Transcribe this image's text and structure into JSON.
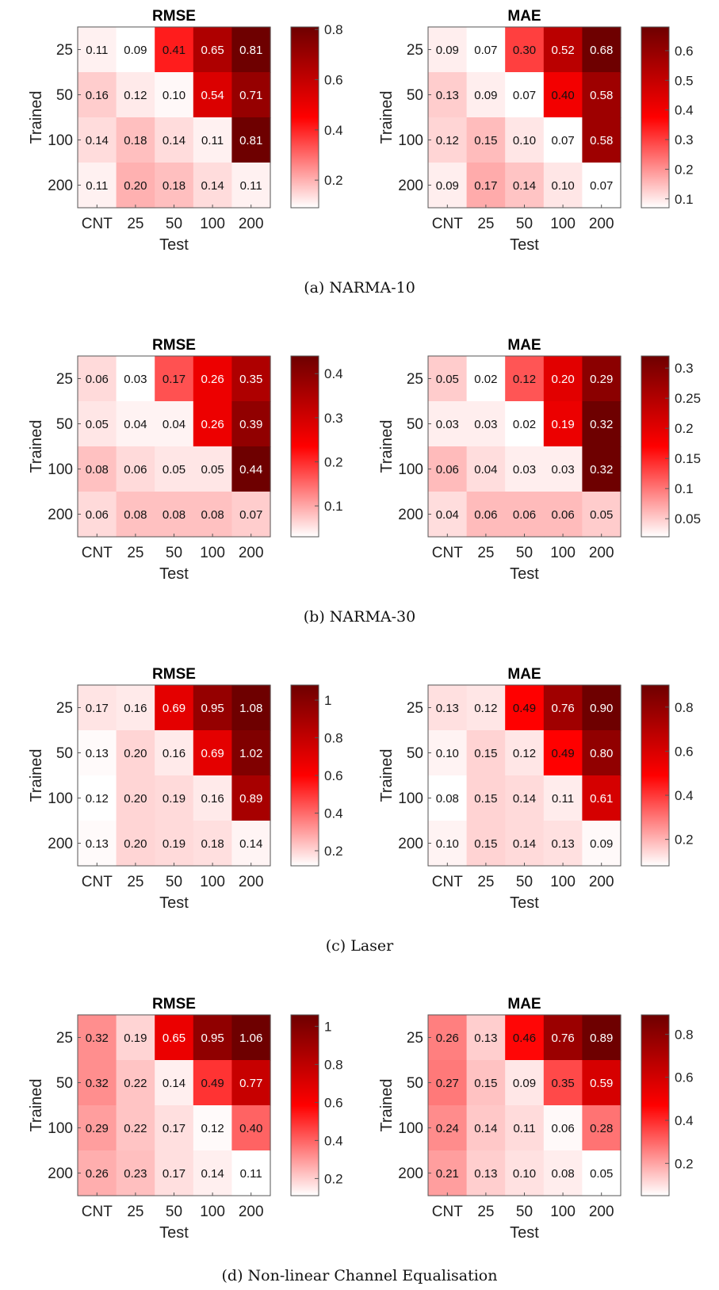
{
  "figure": {
    "panels": [
      {
        "caption": "(a) NARMA-10",
        "charts": [
          {
            "title": "RMSE",
            "cbar_ticks": [
              "0.2",
              "0.4",
              "0.6",
              "0.8"
            ]
          },
          {
            "title": "MAE",
            "cbar_ticks": [
              "0.1",
              "0.2",
              "0.3",
              "0.4",
              "0.5",
              "0.6"
            ]
          }
        ]
      },
      {
        "caption": "(b) NARMA-30",
        "charts": [
          {
            "title": "RMSE",
            "cbar_ticks": [
              "0.1",
              "0.2",
              "0.3",
              "0.4"
            ]
          },
          {
            "title": "MAE",
            "cbar_ticks": [
              "0.05",
              "0.1",
              "0.15",
              "0.2",
              "0.25",
              "0.3"
            ]
          }
        ]
      },
      {
        "caption": "(c) Laser",
        "charts": [
          {
            "title": "RMSE",
            "cbar_ticks": [
              "0.2",
              "0.4",
              "0.6",
              "0.8",
              "1"
            ]
          },
          {
            "title": "MAE",
            "cbar_ticks": [
              "0.2",
              "0.4",
              "0.6",
              "0.8"
            ]
          }
        ]
      },
      {
        "caption": "(d) Non-linear Channel Equalisation",
        "charts": [
          {
            "title": "RMSE",
            "cbar_ticks": [
              "0.2",
              "0.4",
              "0.6",
              "0.8",
              "1"
            ]
          },
          {
            "title": "MAE",
            "cbar_ticks": [
              "0.2",
              "0.4",
              "0.6",
              "0.8"
            ]
          }
        ]
      }
    ]
  },
  "colormap": {
    "low": "#ffffff",
    "mid": "#ff0000",
    "high": "#6e0000"
  },
  "chart_data": [
    {
      "type": "heatmap",
      "panel": "(a) NARMA-10",
      "title": "RMSE",
      "xlabel": "Test",
      "ylabel": "Trained",
      "x_categories": [
        "CNT",
        "25",
        "50",
        "100",
        "200"
      ],
      "y_categories": [
        "25",
        "50",
        "100",
        "200"
      ],
      "values": [
        [
          "0.11",
          "0.09",
          "0.41",
          "0.65",
          "0.81"
        ],
        [
          "0.16",
          "0.12",
          "0.10",
          "0.54",
          "0.71"
        ],
        [
          "0.14",
          "0.18",
          "0.14",
          "0.11",
          "0.81"
        ],
        [
          "0.11",
          "0.20",
          "0.18",
          "0.14",
          "0.11"
        ]
      ],
      "colorbar": {
        "range": [
          0.09,
          0.81
        ],
        "ticks": [
          0.2,
          0.4,
          0.6,
          0.8
        ]
      }
    },
    {
      "type": "heatmap",
      "panel": "(a) NARMA-10",
      "title": "MAE",
      "xlabel": "Test",
      "ylabel": "Trained",
      "x_categories": [
        "CNT",
        "25",
        "50",
        "100",
        "200"
      ],
      "y_categories": [
        "25",
        "50",
        "100",
        "200"
      ],
      "values": [
        [
          "0.09",
          "0.07",
          "0.30",
          "0.52",
          "0.68"
        ],
        [
          "0.13",
          "0.09",
          "0.07",
          "0.40",
          "0.58"
        ],
        [
          "0.12",
          "0.15",
          "0.10",
          "0.07",
          "0.58"
        ],
        [
          "0.09",
          "0.17",
          "0.14",
          "0.10",
          "0.07"
        ]
      ],
      "colorbar": {
        "range": [
          0.07,
          0.68
        ],
        "ticks": [
          0.1,
          0.2,
          0.3,
          0.4,
          0.5,
          0.6
        ]
      }
    },
    {
      "type": "heatmap",
      "panel": "(b) NARMA-30",
      "title": "RMSE",
      "xlabel": "Test",
      "ylabel": "Trained",
      "x_categories": [
        "CNT",
        "25",
        "50",
        "100",
        "200"
      ],
      "y_categories": [
        "25",
        "50",
        "100",
        "200"
      ],
      "values": [
        [
          "0.06",
          "0.03",
          "0.17",
          "0.26",
          "0.35"
        ],
        [
          "0.05",
          "0.04",
          "0.04",
          "0.26",
          "0.39"
        ],
        [
          "0.08",
          "0.06",
          "0.05",
          "0.05",
          "0.44"
        ],
        [
          "0.06",
          "0.08",
          "0.08",
          "0.08",
          "0.07"
        ]
      ],
      "colorbar": {
        "range": [
          0.03,
          0.44
        ],
        "ticks": [
          0.1,
          0.2,
          0.3,
          0.4
        ]
      }
    },
    {
      "type": "heatmap",
      "panel": "(b) NARMA-30",
      "title": "MAE",
      "xlabel": "Test",
      "ylabel": "Trained",
      "x_categories": [
        "CNT",
        "25",
        "50",
        "100",
        "200"
      ],
      "y_categories": [
        "25",
        "50",
        "100",
        "200"
      ],
      "values": [
        [
          "0.05",
          "0.02",
          "0.12",
          "0.20",
          "0.29"
        ],
        [
          "0.03",
          "0.03",
          "0.02",
          "0.19",
          "0.32"
        ],
        [
          "0.06",
          "0.04",
          "0.03",
          "0.03",
          "0.32"
        ],
        [
          "0.04",
          "0.06",
          "0.06",
          "0.06",
          "0.05"
        ]
      ],
      "colorbar": {
        "range": [
          0.02,
          0.32
        ],
        "ticks": [
          0.05,
          0.1,
          0.15,
          0.2,
          0.25,
          0.3
        ]
      }
    },
    {
      "type": "heatmap",
      "panel": "(c) Laser",
      "title": "RMSE",
      "xlabel": "Test",
      "ylabel": "Trained",
      "x_categories": [
        "CNT",
        "25",
        "50",
        "100",
        "200"
      ],
      "y_categories": [
        "25",
        "50",
        "100",
        "200"
      ],
      "values": [
        [
          "0.17",
          "0.16",
          "0.69",
          "0.95",
          "1.08"
        ],
        [
          "0.13",
          "0.20",
          "0.16",
          "0.69",
          "1.02"
        ],
        [
          "0.12",
          "0.20",
          "0.19",
          "0.16",
          "0.89"
        ],
        [
          "0.13",
          "0.20",
          "0.19",
          "0.18",
          "0.14"
        ]
      ],
      "colorbar": {
        "range": [
          0.12,
          1.08
        ],
        "ticks": [
          0.2,
          0.4,
          0.6,
          0.8,
          1
        ]
      }
    },
    {
      "type": "heatmap",
      "panel": "(c) Laser",
      "title": "MAE",
      "xlabel": "Test",
      "ylabel": "Trained",
      "x_categories": [
        "CNT",
        "25",
        "50",
        "100",
        "200"
      ],
      "y_categories": [
        "25",
        "50",
        "100",
        "200"
      ],
      "values": [
        [
          "0.13",
          "0.12",
          "0.49",
          "0.76",
          "0.90"
        ],
        [
          "0.10",
          "0.15",
          "0.12",
          "0.49",
          "0.80"
        ],
        [
          "0.08",
          "0.15",
          "0.14",
          "0.11",
          "0.61"
        ],
        [
          "0.10",
          "0.15",
          "0.14",
          "0.13",
          "0.09"
        ]
      ],
      "colorbar": {
        "range": [
          0.08,
          0.9
        ],
        "ticks": [
          0.2,
          0.4,
          0.6,
          0.8
        ]
      }
    },
    {
      "type": "heatmap",
      "panel": "(d) Non-linear Channel Equalisation",
      "title": "RMSE",
      "xlabel": "Test",
      "ylabel": "Trained",
      "x_categories": [
        "CNT",
        "25",
        "50",
        "100",
        "200"
      ],
      "y_categories": [
        "25",
        "50",
        "100",
        "200"
      ],
      "values": [
        [
          "0.32",
          "0.19",
          "0.65",
          "0.95",
          "1.06"
        ],
        [
          "0.32",
          "0.22",
          "0.14",
          "0.49",
          "0.77"
        ],
        [
          "0.29",
          "0.22",
          "0.17",
          "0.12",
          "0.40"
        ],
        [
          "0.26",
          "0.23",
          "0.17",
          "0.14",
          "0.11"
        ]
      ],
      "colorbar": {
        "range": [
          0.11,
          1.06
        ],
        "ticks": [
          0.2,
          0.4,
          0.6,
          0.8,
          1
        ]
      }
    },
    {
      "type": "heatmap",
      "panel": "(d) Non-linear Channel Equalisation",
      "title": "MAE",
      "xlabel": "Test",
      "ylabel": "Trained",
      "x_categories": [
        "CNT",
        "25",
        "50",
        "100",
        "200"
      ],
      "y_categories": [
        "25",
        "50",
        "100",
        "200"
      ],
      "values": [
        [
          "0.26",
          "0.13",
          "0.46",
          "0.76",
          "0.89"
        ],
        [
          "0.27",
          "0.15",
          "0.09",
          "0.35",
          "0.59"
        ],
        [
          "0.24",
          "0.14",
          "0.11",
          "0.06",
          "0.28"
        ],
        [
          "0.21",
          "0.13",
          "0.10",
          "0.08",
          "0.05"
        ]
      ],
      "colorbar": {
        "range": [
          0.05,
          0.89
        ],
        "ticks": [
          0.2,
          0.4,
          0.6,
          0.8
        ]
      }
    }
  ]
}
